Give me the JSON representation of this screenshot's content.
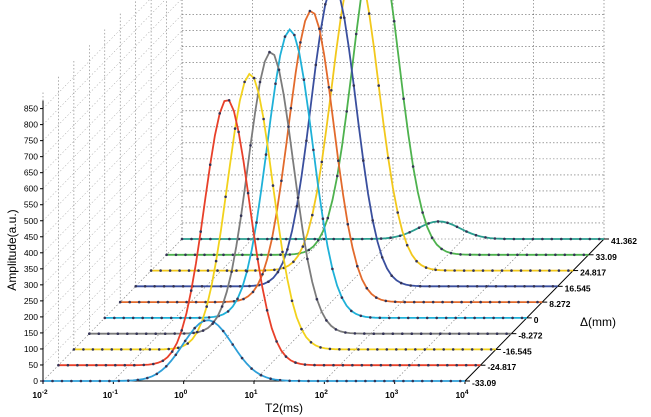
{
  "chart_data": {
    "type": "line",
    "subtype": "3d-waterfall",
    "title": "",
    "xlabel": "T2(ms)",
    "ylabel": "Amplitude(a.u.)",
    "zlabel": "Δ(mm)",
    "x_scale": "log",
    "xlim": [
      0.01,
      10000
    ],
    "ylim": [
      0,
      850
    ],
    "x_tick_labels": [
      {
        "base": "10",
        "exp": "-2"
      },
      {
        "base": "10",
        "exp": "-1"
      },
      {
        "base": "10",
        "exp": "0"
      },
      {
        "base": "10",
        "exp": "1"
      },
      {
        "base": "10",
        "exp": "2"
      },
      {
        "base": "10",
        "exp": "3"
      },
      {
        "base": "10",
        "exp": "4"
      }
    ],
    "y_ticks": [
      "0",
      "50",
      "100",
      "150",
      "200",
      "250",
      "300",
      "350",
      "400",
      "450",
      "500",
      "550",
      "600",
      "650",
      "700",
      "750",
      "800",
      "850"
    ],
    "z_tick_labels": [
      "-33.09",
      "-24.817",
      "-16.545",
      "-8.272",
      "0",
      "8.272",
      "16.545",
      "24.817",
      "33.09",
      "41.362"
    ],
    "grid": true,
    "legend": "none",
    "series": [
      {
        "z": "-33.09",
        "color": "#2e9fd8",
        "peak_t2": 2.2,
        "peak_amp": 190,
        "width": 0.35
      },
      {
        "z": "-24.817",
        "color": "#e8402a",
        "peak_t2": 2.5,
        "peak_amp": 830,
        "width": 0.32
      },
      {
        "z": "-16.545",
        "color": "#f2d21c",
        "peak_t2": 3.2,
        "peak_amp": 860,
        "width": 0.32
      },
      {
        "z": "-8.272",
        "color": "#7c7c7c",
        "peak_t2": 3.8,
        "peak_amp": 880,
        "width": 0.32
      },
      {
        "z": "0",
        "color": "#1fb1d8",
        "peak_t2": 4.3,
        "peak_amp": 900,
        "width": 0.32
      },
      {
        "z": "8.272",
        "color": "#e26a2c",
        "peak_t2": 5.2,
        "peak_amp": 910,
        "width": 0.32
      },
      {
        "z": "16.545",
        "color": "#3a4f9e",
        "peak_t2": 6.5,
        "peak_amp": 940,
        "width": 0.32
      },
      {
        "z": "24.817",
        "color": "#f2c81c",
        "peak_t2": 8.0,
        "peak_amp": 960,
        "width": 0.33
      },
      {
        "z": "33.09",
        "color": "#4eb24e",
        "peak_t2": 9.5,
        "peak_amp": 990,
        "width": 0.33
      },
      {
        "z": "41.362",
        "color": "#2a9d8f",
        "peak_t2": 45.0,
        "peak_amp": 55,
        "width": 0.3
      }
    ]
  }
}
